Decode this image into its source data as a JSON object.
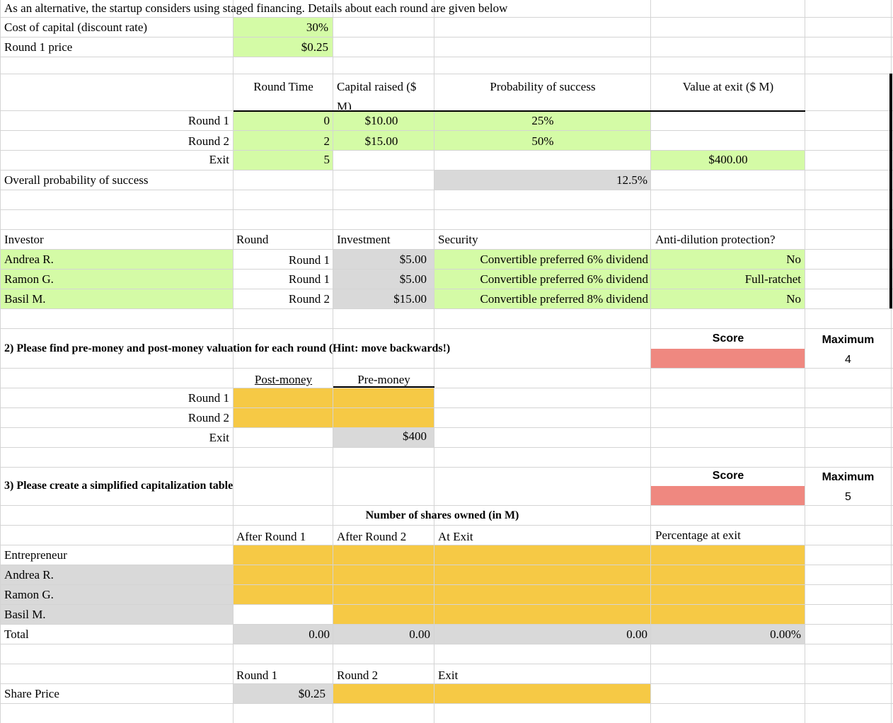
{
  "intro": {
    "header": "As an alternative, the startup considers using staged financing. Details about each round are given below",
    "cost_label": "Cost of capital (discount rate)",
    "cost_value": "30%",
    "price_label": "Round 1 price",
    "price_value": "$0.25"
  },
  "rounds": {
    "headers": [
      "Round Time",
      "Capital raised ($ M)",
      "Probability of success",
      "Value at exit ($ M)"
    ],
    "rows": [
      {
        "label": "Round 1",
        "time": "0",
        "capital": "$10.00",
        "prob": "25%",
        "exit_value": ""
      },
      {
        "label": "Round 2",
        "time": "2",
        "capital": "$15.00",
        "prob": "50%",
        "exit_value": ""
      },
      {
        "label": "Exit",
        "time": "5",
        "capital": "",
        "prob": "",
        "exit_value": "$400.00"
      }
    ],
    "overall_label": "Overall probability of success",
    "overall_value": "12.5%"
  },
  "investors": {
    "headers": [
      "Investor",
      "Round",
      "Investment",
      "Security",
      "Anti-dilution protection?"
    ],
    "rows": [
      {
        "name": "Andrea R.",
        "round": "Round 1",
        "investment": "$5.00",
        "security": "Convertible preferred 6% dividend",
        "protection": "No"
      },
      {
        "name": "Ramon G.",
        "round": "Round 1",
        "investment": "$5.00",
        "security": "Convertible preferred 6% dividend",
        "protection": "Full-ratchet"
      },
      {
        "name": "Basil M.",
        "round": "Round 2",
        "investment": "$15.00",
        "security": "Convertible preferred 8% dividend",
        "protection": "No"
      }
    ]
  },
  "q2": {
    "title": "2) Please find pre-money and post-money valuation for each round (Hint: move backwards!)",
    "score_label": "Score",
    "max_label": "Maximum",
    "max_value": "4",
    "col_post": "Post-money",
    "col_pre": "Pre-money",
    "rows": [
      "Round 1",
      "Round 2",
      "Exit"
    ],
    "exit_pre": "$400"
  },
  "q3": {
    "title": "3) Please create a simplified capitalization table",
    "score_label": "Score",
    "max_label": "Maximum",
    "max_value": "5",
    "shares_header": "Number of shares owned (in M)",
    "cols": [
      "After Round 1",
      "After Round 2",
      "At Exit",
      "Percentage at exit"
    ],
    "rows": [
      "Entrepreneur",
      "Andrea R.",
      "Ramon G.",
      "Basil M."
    ],
    "total_label": "Total",
    "total_r1": "0.00",
    "total_r2": "0.00",
    "total_exit": "0.00",
    "total_pct": "0.00%",
    "price_cols": [
      "Round 1",
      "Round 2",
      "Exit"
    ],
    "share_price_label": "Share Price",
    "share_price_r1": "$0.25"
  },
  "colors": {
    "input_green": "#d4fba6",
    "calc_gray": "#d9d9d9",
    "answer_yellow": "#f6c945",
    "score_red": "#ef8880"
  }
}
